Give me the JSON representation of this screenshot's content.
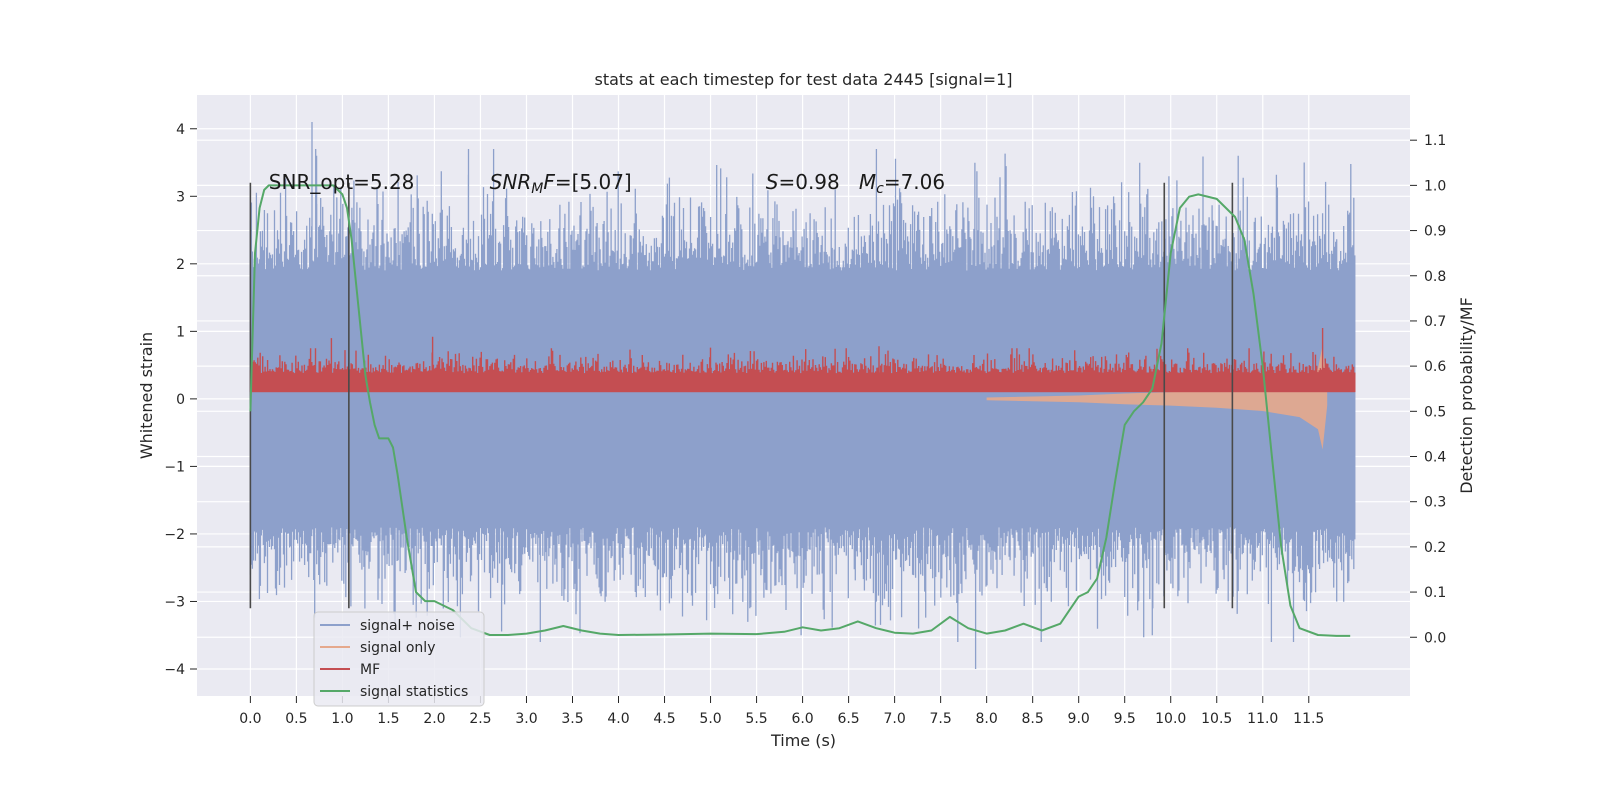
{
  "chart_data": {
    "type": "line",
    "title": "stats at each timestep for test data 2445 [signal=1]",
    "xlabel": "Time (s)",
    "ylabel": "Whitened strain",
    "ylabel_right": "Detection probability/MF",
    "xlim": [
      -0.58,
      12.6
    ],
    "ylim": [
      -4.4,
      4.5
    ],
    "ylim_right": [
      -0.13,
      1.2
    ],
    "x_ticks": [
      0.0,
      0.5,
      1.0,
      1.5,
      2.0,
      2.5,
      3.0,
      3.5,
      4.0,
      4.5,
      5.0,
      5.5,
      6.0,
      6.5,
      7.0,
      7.5,
      8.0,
      8.5,
      9.0,
      9.5,
      10.0,
      10.5,
      11.0,
      11.5
    ],
    "x_tick_labels": [
      "0.0",
      "0.5",
      "1.0",
      "1.5",
      "2.0",
      "2.5",
      "3.0",
      "3.5",
      "4.0",
      "4.5",
      "5.0",
      "5.5",
      "6.0",
      "6.5",
      "7.0",
      "7.5",
      "8.0",
      "8.5",
      "9.0",
      "9.5",
      "10.0",
      "10.5",
      "11.0",
      "11.5"
    ],
    "y_ticks": [
      -4,
      -3,
      -2,
      -1,
      0,
      1,
      2,
      3,
      4
    ],
    "y_tick_labels": [
      "−4",
      "−3",
      "−2",
      "−1",
      "0",
      "1",
      "2",
      "3",
      "4"
    ],
    "y_right_ticks": [
      0.0,
      0.1,
      0.2,
      0.3,
      0.4,
      0.5,
      0.6,
      0.7,
      0.8,
      0.9,
      1.0,
      1.1
    ],
    "y_right_tick_labels": [
      "0.0",
      "0.1",
      "0.2",
      "0.3",
      "0.4",
      "0.5",
      "0.6",
      "0.7",
      "0.8",
      "0.9",
      "1.0",
      "1.1"
    ],
    "grid": true,
    "legend_position": "lower-left",
    "annotations": [
      {
        "id": "snr-opt",
        "text": "SNR_opt=5.28",
        "x": 0.2,
        "y": 3.2
      },
      {
        "id": "snr-mf",
        "text": "SNR_MF=[5.07]",
        "x": 2.6,
        "y": 3.2
      },
      {
        "id": "s-mc",
        "text": "S=0.98   Mc=7.06",
        "x": 5.6,
        "y": 3.2
      }
    ],
    "vertical_lines": [
      0.0,
      1.07,
      9.93,
      10.67
    ],
    "vertical_line_range": [
      -3.1,
      3.2
    ],
    "series": [
      {
        "name": "signal+ noise",
        "color": "#8da0cb",
        "axis": "left",
        "kind": "noise-band",
        "x_range": [
          0.0,
          12.0
        ],
        "core_range": [
          -1.9,
          1.9
        ],
        "peak_max": 4.1,
        "peak_min": -4.0
      },
      {
        "name": "signal only",
        "color": "#e5a88c",
        "axis": "left",
        "kind": "chirp",
        "x": [
          8.0,
          9.0,
          9.5,
          10.0,
          10.5,
          11.0,
          11.4,
          11.6,
          11.65,
          11.7
        ],
        "upper": [
          0.02,
          0.05,
          0.08,
          0.1,
          0.13,
          0.18,
          0.27,
          0.45,
          0.8,
          0.1
        ],
        "lower": [
          -0.02,
          -0.05,
          -0.08,
          -0.1,
          -0.13,
          -0.18,
          -0.27,
          -0.45,
          -0.75,
          -0.1
        ]
      },
      {
        "name": "MF",
        "color": "#c44e52",
        "axis": "left",
        "kind": "mf-band",
        "x_range": [
          0.0,
          12.0
        ],
        "base": 0.1,
        "typical_max": 0.6,
        "peak_max": 1.05
      },
      {
        "name": "signal statistics",
        "color": "#55a868",
        "axis": "right",
        "kind": "line",
        "x": [
          0.0,
          0.05,
          0.1,
          0.15,
          0.2,
          0.3,
          0.5,
          0.7,
          0.9,
          0.95,
          1.0,
          1.05,
          1.1,
          1.15,
          1.2,
          1.25,
          1.3,
          1.35,
          1.4,
          1.45,
          1.5,
          1.55,
          1.6,
          1.7,
          1.8,
          1.9,
          2.0,
          2.1,
          2.2,
          2.4,
          2.6,
          2.8,
          3.0,
          3.2,
          3.4,
          3.6,
          3.8,
          4.0,
          4.5,
          5.0,
          5.5,
          5.8,
          6.0,
          6.2,
          6.4,
          6.6,
          6.8,
          7.0,
          7.2,
          7.4,
          7.6,
          7.8,
          8.0,
          8.2,
          8.4,
          8.6,
          8.8,
          8.9,
          9.0,
          9.1,
          9.2,
          9.3,
          9.4,
          9.5,
          9.6,
          9.7,
          9.8,
          9.9,
          10.0,
          10.1,
          10.2,
          10.3,
          10.5,
          10.7,
          10.8,
          10.9,
          11.0,
          11.1,
          11.2,
          11.3,
          11.4,
          11.6,
          11.8,
          11.95
        ],
        "y": [
          0.5,
          0.85,
          0.95,
          0.99,
          1.0,
          1.0,
          1.0,
          1.0,
          1.0,
          0.99,
          0.98,
          0.95,
          0.88,
          0.78,
          0.68,
          0.58,
          0.52,
          0.47,
          0.44,
          0.44,
          0.44,
          0.42,
          0.36,
          0.22,
          0.1,
          0.08,
          0.08,
          0.07,
          0.06,
          0.02,
          0.005,
          0.005,
          0.008,
          0.015,
          0.025,
          0.015,
          0.008,
          0.005,
          0.006,
          0.008,
          0.007,
          0.012,
          0.022,
          0.015,
          0.02,
          0.035,
          0.02,
          0.01,
          0.008,
          0.015,
          0.045,
          0.02,
          0.008,
          0.015,
          0.03,
          0.015,
          0.03,
          0.06,
          0.09,
          0.1,
          0.13,
          0.22,
          0.35,
          0.47,
          0.5,
          0.52,
          0.55,
          0.65,
          0.85,
          0.95,
          0.975,
          0.98,
          0.97,
          0.93,
          0.88,
          0.76,
          0.6,
          0.4,
          0.2,
          0.07,
          0.02,
          0.005,
          0.003,
          0.003
        ]
      }
    ]
  }
}
